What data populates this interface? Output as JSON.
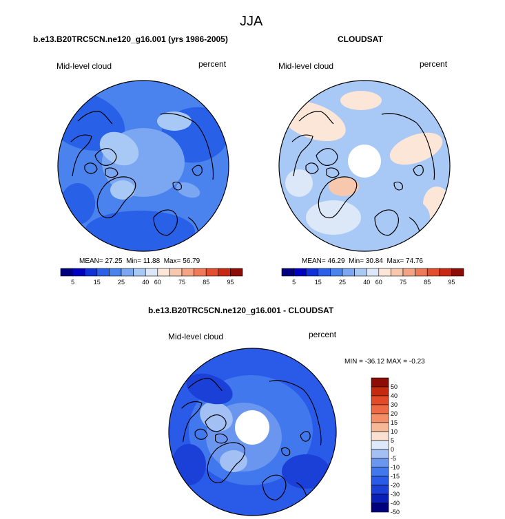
{
  "page": {
    "season": "JJA"
  },
  "colors": {
    "abs_scale": [
      "#00007f",
      "#0000c0",
      "#1030d8",
      "#2860e8",
      "#4a82ee",
      "#7aa6f2",
      "#a8c8f5",
      "#dce8f8",
      "#fbe6d8",
      "#f8c8ae",
      "#f4a484",
      "#f07a58",
      "#e34e2e",
      "#c82812",
      "#8e0c06"
    ],
    "diff_scale": [
      "#00007f",
      "#0a1fb8",
      "#1a40d8",
      "#2a5ae8",
      "#4278ee",
      "#6a96f0",
      "#a2c0f4",
      "#dde8f8",
      "#fae0d0",
      "#f7b898",
      "#f48e66",
      "#ee6a44",
      "#e24a28",
      "#c42a10",
      "#8e0c06"
    ]
  },
  "chart_data": [
    {
      "type": "heatmap",
      "projection": "north-polar-stereographic",
      "title": "b.e13.B20TRC5CN.ne120_g16.001 (yrs 1986-2005)",
      "left_label": "Mid-level cloud",
      "right_label": "percent",
      "stats": {
        "mean_label": "MEAN=",
        "mean": "27.25",
        "min_label": "Min=",
        "min": "11.88",
        "max_label": "Max=",
        "max": "56.79"
      },
      "colorbar": {
        "orientation": "horizontal",
        "tick_labels": [
          "5",
          "15",
          "25",
          "40",
          "60",
          "75",
          "85",
          "95"
        ]
      }
    },
    {
      "type": "heatmap",
      "projection": "north-polar-stereographic",
      "title": "CLOUDSAT",
      "left_label": "Mid-level cloud",
      "right_label": "percent",
      "stats": {
        "mean_label": "MEAN=",
        "mean": "46.29",
        "min_label": "Min=",
        "min": "30.84",
        "max_label": "Max=",
        "max": "74.76"
      },
      "colorbar": {
        "orientation": "horizontal",
        "tick_labels": [
          "5",
          "15",
          "25",
          "40",
          "60",
          "75",
          "85",
          "95"
        ]
      }
    },
    {
      "type": "heatmap",
      "projection": "north-polar-stereographic",
      "title": "b.e13.B20TRC5CN.ne120_g16.001 - CLOUDSAT",
      "left_label": "Mid-level cloud",
      "right_label": "percent",
      "stats_text": "MIN = -36.12 MAX =  -0.23",
      "colorbar": {
        "orientation": "vertical",
        "tick_labels": [
          "50",
          "40",
          "30",
          "20",
          "15",
          "10",
          "5",
          "0",
          "-5",
          "-10",
          "-15",
          "-20",
          "-30",
          "-40",
          "-50"
        ]
      }
    }
  ]
}
